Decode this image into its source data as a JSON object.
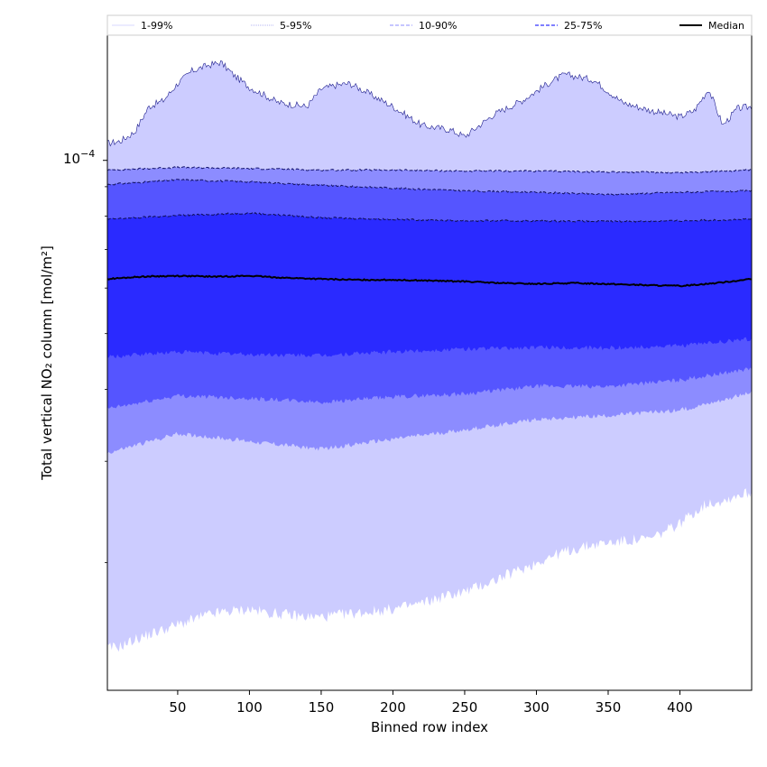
{
  "chart_data": {
    "type": "area",
    "xlabel": "Binned row index",
    "ylabel": "Total vertical NO₂ column [mol/m²]",
    "yscale": "log",
    "xlim": [
      1,
      450
    ],
    "ylim": [
      1.2e-05,
      0.000165
    ],
    "x_ticks": [
      50,
      100,
      150,
      200,
      250,
      300,
      350,
      400
    ],
    "x_tick_labels": [
      "50",
      "100",
      "150",
      "200",
      "250",
      "300",
      "350",
      "400"
    ],
    "y_major_ticks": [
      0.0001
    ],
    "y_major_tick_label": {
      "base": "10",
      "exponent": "−4"
    },
    "legend": {
      "placement": "top",
      "entries": [
        {
          "label": "1-99%",
          "color": "#ccccff",
          "style": "solid-thin"
        },
        {
          "label": "5-95%",
          "color": "#9a9af0",
          "style": "dotted"
        },
        {
          "label": "10-90%",
          "color": "#8c8cff",
          "style": "dashed"
        },
        {
          "label": "25-75%",
          "color": "#5555ff",
          "style": "dashed"
        },
        {
          "label": "Median",
          "color": "#000000",
          "style": "solid"
        }
      ]
    },
    "bands": [
      {
        "name": "1-99%",
        "color": "#ccccff",
        "x": [
          1,
          10,
          20,
          30,
          40,
          50,
          60,
          70,
          80,
          90,
          100,
          110,
          120,
          140,
          150,
          160,
          170,
          180,
          200,
          220,
          240,
          250,
          270,
          290,
          310,
          320,
          340,
          360,
          380,
          400,
          410,
          420,
          430,
          440,
          450
        ],
        "upper": [
          0.000107,
          0.000108,
          0.000112,
          0.000124,
          0.000127,
          0.000136,
          0.000143,
          0.000146,
          0.000148,
          0.00014,
          0.000134,
          0.00013,
          0.000126,
          0.000124,
          0.000133,
          0.000135,
          0.000136,
          0.000132,
          0.000124,
          0.000115,
          0.000113,
          0.00011,
          0.00012,
          0.000127,
          0.000137,
          0.000141,
          0.000138,
          0.000126,
          0.000122,
          0.000119,
          0.000122,
          0.000133,
          0.000115,
          0.000123,
          0.000124
        ],
        "lower": [
          1.42e-05,
          1.43e-05,
          1.47e-05,
          1.5e-05,
          1.53e-05,
          1.56e-05,
          1.59e-05,
          1.62e-05,
          1.64e-05,
          1.65e-05,
          1.66e-05,
          1.64e-05,
          1.63e-05,
          1.61e-05,
          1.61e-05,
          1.62e-05,
          1.63e-05,
          1.64e-05,
          1.66e-05,
          1.7e-05,
          1.76e-05,
          1.78e-05,
          1.86e-05,
          1.95e-05,
          2.05e-05,
          2.09e-05,
          2.15e-05,
          2.18e-05,
          2.2e-05,
          2.34e-05,
          2.45e-05,
          2.54e-05,
          2.56e-05,
          2.62e-05,
          2.65e-05
        ]
      },
      {
        "name": "5-95%",
        "color": "#8c8cff",
        "x": [
          1,
          50,
          100,
          150,
          200,
          250,
          300,
          350,
          400,
          450
        ],
        "upper": [
          9.62e-05,
          9.72e-05,
          9.68e-05,
          9.62e-05,
          9.62e-05,
          9.58e-05,
          9.58e-05,
          9.55e-05,
          9.52e-05,
          9.62e-05
        ],
        "lower": [
          3.1e-05,
          3.35e-05,
          3.25e-05,
          3.15e-05,
          3.28e-05,
          3.4e-05,
          3.55e-05,
          3.6e-05,
          3.68e-05,
          3.95e-05
        ]
      },
      {
        "name": "10-90%",
        "color": "#5555ff",
        "x": [
          1,
          50,
          100,
          150,
          200,
          250,
          300,
          350,
          400,
          450
        ],
        "upper": [
          9.08e-05,
          9.25e-05,
          9.18e-05,
          9.05e-05,
          8.95e-05,
          8.85e-05,
          8.8e-05,
          8.72e-05,
          8.8e-05,
          8.85e-05
        ],
        "lower": [
          3.7e-05,
          3.9e-05,
          3.86e-05,
          3.8e-05,
          3.88e-05,
          3.93e-05,
          4.05e-05,
          4.05e-05,
          4.15e-05,
          4.35e-05
        ]
      },
      {
        "name": "25-75%",
        "color": "#2a2aff",
        "x": [
          1,
          50,
          100,
          150,
          200,
          250,
          300,
          350,
          400,
          450
        ],
        "upper": [
          7.9e-05,
          8.02e-05,
          8.1e-05,
          7.95e-05,
          7.9e-05,
          7.85e-05,
          7.85e-05,
          7.83e-05,
          7.85e-05,
          7.9e-05
        ],
        "lower": [
          4.55e-05,
          4.65e-05,
          4.6e-05,
          4.58e-05,
          4.65e-05,
          4.7e-05,
          4.73e-05,
          4.72e-05,
          4.76e-05,
          4.9e-05
        ]
      }
    ],
    "median": {
      "x": [
        1,
        25,
        50,
        75,
        100,
        125,
        150,
        175,
        200,
        225,
        250,
        275,
        300,
        325,
        350,
        375,
        400,
        425,
        450
      ],
      "y": [
        6.22e-05,
        6.28e-05,
        6.3e-05,
        6.28e-05,
        6.3e-05,
        6.25e-05,
        6.22e-05,
        6.2e-05,
        6.2e-05,
        6.18e-05,
        6.16e-05,
        6.12e-05,
        6.1e-05,
        6.12e-05,
        6.1e-05,
        6.07e-05,
        6.05e-05,
        6.12e-05,
        6.22e-05
      ]
    }
  }
}
